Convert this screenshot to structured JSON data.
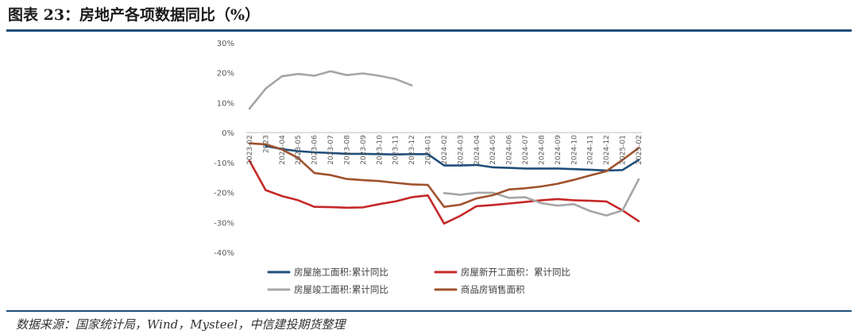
{
  "figure": {
    "title": "图表 23：房地产各项数据同比（%）",
    "source": "数据来源：国家统计局，Wind，Mysteel，中信建投期货整理"
  },
  "chart_data": {
    "type": "line",
    "x": [
      "2023-02",
      "2023-03",
      "2023-04",
      "2023-05",
      "2023-06",
      "2023-07",
      "2023-08",
      "2023-09",
      "2023-10",
      "2023-11",
      "2023-12",
      "2024-01",
      "2024-02",
      "2024-03",
      "2024-04",
      "2024-05",
      "2024-06",
      "2024-07",
      "2024-08",
      "2024-09",
      "2024-10",
      "2024-11",
      "2024-12",
      "2025-01",
      "2025-02"
    ],
    "x_tick_labels": [
      "2023-02",
      "2023",
      "2023-04",
      "2023-05",
      "2023-06",
      "2023-07",
      "2023-08",
      "2023-09",
      "2023-10",
      "2023-11",
      "2023-12",
      "2024-01",
      "2024-02",
      "2024-03",
      "2024-04",
      "2024-05",
      "2024-06",
      "2024-07",
      "2024-08",
      "2024-09",
      "2024-10",
      "2024-11",
      "2024-12",
      "2025-01",
      "2025-02"
    ],
    "ylim": [
      -40,
      30
    ],
    "y_ticks": [
      30,
      20,
      10,
      0,
      -10,
      -20,
      -30,
      -40
    ],
    "y_tick_suffix": "%",
    "grid": false,
    "legend_position": "bottom",
    "series": [
      {
        "name": "房屋施工面积:累计同比",
        "color": "#1f4e79",
        "values": [
          null,
          -4.5,
          -5.5,
          -6.2,
          -6.6,
          -6.8,
          -7.1,
          -7.1,
          -7.2,
          -7.3,
          -7.2,
          -7.2,
          -11.0,
          -11.0,
          -10.8,
          -11.6,
          -11.8,
          -12.0,
          -12.0,
          -12.0,
          -12.2,
          -12.4,
          -12.7,
          -12.5,
          -9.1
        ]
      },
      {
        "name": "房屋新开工面积：累计同比",
        "color": "#c62828",
        "values": [
          -9.4,
          -19.2,
          -21.2,
          -22.6,
          -24.8,
          -24.9,
          -25.1,
          -25.0,
          -23.9,
          -23.0,
          -21.6,
          -21.0,
          -30.4,
          -27.8,
          -24.6,
          -24.2,
          -23.7,
          -23.2,
          -22.6,
          -22.2,
          -22.6,
          -22.8,
          -23.0,
          -26.0,
          -29.6
        ]
      },
      {
        "name": "房屋竣工面积:累计同比",
        "color": "#a6a6a6",
        "values": [
          8.0,
          14.7,
          18.8,
          19.6,
          19.0,
          20.5,
          19.2,
          19.8,
          19.0,
          17.9,
          15.8,
          null,
          -20.2,
          -20.8,
          -20.1,
          -20.1,
          -21.8,
          -21.6,
          -23.6,
          -24.4,
          -23.9,
          -26.2,
          -27.7,
          -26.0,
          -15.6
        ]
      },
      {
        "name": "商品房销售面积",
        "color": "#a0522d",
        "values": [
          -3.6,
          -3.9,
          -5.6,
          -8.5,
          -13.5,
          -14.2,
          -15.5,
          -15.9,
          -16.2,
          -16.8,
          -17.3,
          -17.5,
          -24.8,
          -24.1,
          -22.0,
          -20.9,
          -19.0,
          -18.6,
          -18.0,
          -17.1,
          -15.8,
          -14.3,
          -12.9,
          -9.1,
          -5.1
        ]
      }
    ]
  }
}
